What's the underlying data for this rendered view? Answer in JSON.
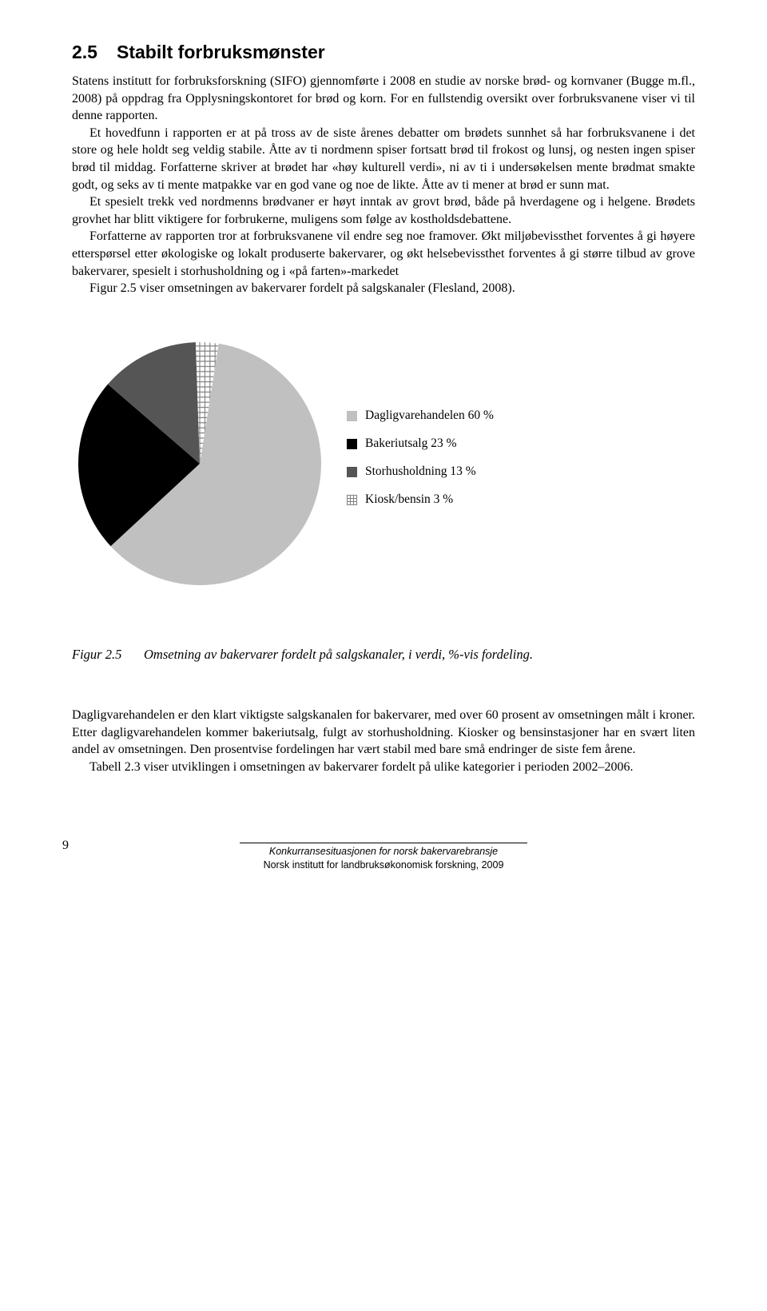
{
  "heading": {
    "number": "2.5",
    "title": "Stabilt forbruksmønster"
  },
  "paragraphs": {
    "p1": "Statens institutt for forbruksforskning (SIFO) gjennomførte i 2008 en studie av norske brød- og kornvaner (Bugge m.fl., 2008) på oppdrag fra Opplysningskontoret for brød og korn. For en fullstendig oversikt over forbruksvanene viser vi til denne rapporten.",
    "p2": "Et hovedfunn i rapporten er at på tross av de siste årenes debatter om brødets sunnhet så har forbruksvanene i det store og hele holdt seg veldig stabile. Åtte av ti nordmenn spiser fortsatt brød til frokost og lunsj, og nesten ingen spiser brød til middag. Forfatterne skriver at brødet har «høy kulturell verdi», ni av ti i undersøkelsen mente brødmat smakte godt, og seks av ti mente matpakke var en god vane og noe de likte. Åtte av ti mener at brød er sunn mat.",
    "p3": "Et spesielt trekk ved nordmenns brødvaner er høyt inntak av grovt brød, både på hverdagene og i helgene. Brødets grovhet har blitt viktigere for forbrukerne, muligens som følge av kostholdsdebattene.",
    "p4": "Forfatterne av rapporten tror at forbruksvanene vil endre seg noe framover. Økt miljøbevissthet forventes å gi høyere etterspørsel etter økologiske og lokalt produserte bakervarer, og økt helsebevissthet forventes å gi større tilbud av grove bakervarer, spesielt i storhusholdning og i «på farten»-markedet",
    "p5": "Figur 2.5 viser omsetningen av bakervarer fordelt på salgskanaler (Flesland, 2008)."
  },
  "chart": {
    "type": "pie",
    "values": [
      60,
      23,
      13,
      3
    ],
    "labels": [
      "Dagligvarehandelen 60 %",
      "Bakeriutsalg 23 %",
      "Storhusholdning 13 %",
      "Kiosk/bensin 3 %"
    ],
    "slice_colors": [
      "#c0c0c0",
      "#000000",
      "#555555",
      "pattern"
    ],
    "pattern_color_a": "#ffffff",
    "pattern_color_b": "#808080",
    "background_color": "#ffffff",
    "start_angle_deg": -81,
    "legend_fontsize": 15.5
  },
  "caption": {
    "label": "Figur 2.5",
    "text": "Omsetning av bakervarer fordelt på salgskanaler, i verdi, %-vis fordeling."
  },
  "paragraphs2": {
    "p6": "Dagligvarehandelen er den klart viktigste salgskanalen for bakervarer, med over 60 prosent av omsetningen målt i kroner. Etter dagligvarehandelen kommer bakeriutsalg, fulgt av storhusholdning. Kiosker og bensinstasjoner har en svært liten andel av omsetningen. Den prosentvise fordelingen har vært stabil med bare små endringer de siste fem årene.",
    "p7": "Tabell 2.3 viser utviklingen i omsetningen av bakervarer fordelt på ulike kategorier i perioden 2002–2006."
  },
  "footer": {
    "page": "9",
    "line1": "Konkurransesituasjonen for norsk bakervarebransje",
    "line2": "Norsk institutt for landbruksøkonomisk forskning, 2009"
  }
}
